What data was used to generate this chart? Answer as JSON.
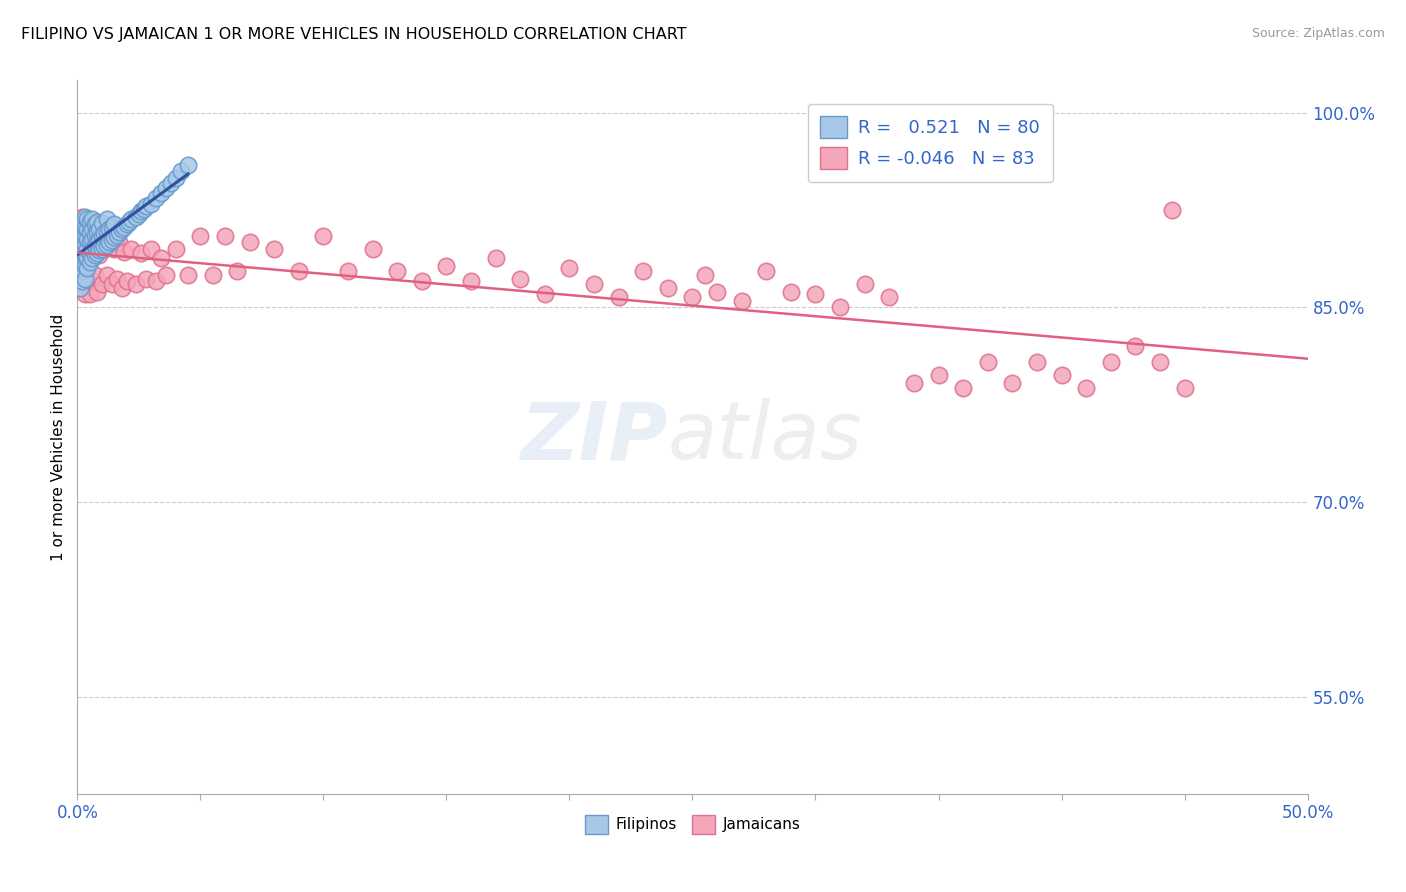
{
  "title": "FILIPINO VS JAMAICAN 1 OR MORE VEHICLES IN HOUSEHOLD CORRELATION CHART",
  "source": "Source: ZipAtlas.com",
  "ylabel": "1 or more Vehicles in Household",
  "xlim": [
    0.0,
    0.5
  ],
  "ylim": [
    0.475,
    1.025
  ],
  "xticks": [
    0.0,
    0.05,
    0.1,
    0.15,
    0.2,
    0.25,
    0.3,
    0.35,
    0.4,
    0.45,
    0.5
  ],
  "xticklabels": [
    "0.0%",
    "",
    "",
    "",
    "",
    "",
    "",
    "",
    "",
    "",
    "50.0%"
  ],
  "yticks_right": [
    0.55,
    0.7,
    0.85,
    1.0
  ],
  "ytick_right_labels": [
    "55.0%",
    "70.0%",
    "85.0%",
    "100.0%"
  ],
  "r_filipino": 0.521,
  "n_filipino": 80,
  "r_jamaican": -0.046,
  "n_jamaican": 83,
  "filipino_color": "#A8C8E8",
  "jamaican_color": "#F4A7B9",
  "filipino_edge": "#6699CC",
  "jamaican_edge": "#E07090",
  "trend_filipino_color": "#3050A0",
  "trend_jamaican_color": "#E06080",
  "filipino_x": [
    0.001,
    0.001,
    0.001,
    0.001,
    0.001,
    0.002,
    0.002,
    0.002,
    0.002,
    0.002,
    0.002,
    0.002,
    0.003,
    0.003,
    0.003,
    0.003,
    0.003,
    0.003,
    0.003,
    0.004,
    0.004,
    0.004,
    0.004,
    0.004,
    0.004,
    0.005,
    0.005,
    0.005,
    0.005,
    0.005,
    0.006,
    0.006,
    0.006,
    0.006,
    0.006,
    0.007,
    0.007,
    0.007,
    0.007,
    0.008,
    0.008,
    0.008,
    0.008,
    0.009,
    0.009,
    0.009,
    0.01,
    0.01,
    0.01,
    0.011,
    0.011,
    0.012,
    0.012,
    0.012,
    0.013,
    0.013,
    0.014,
    0.014,
    0.015,
    0.015,
    0.016,
    0.017,
    0.018,
    0.019,
    0.02,
    0.021,
    0.022,
    0.024,
    0.025,
    0.026,
    0.027,
    0.028,
    0.03,
    0.032,
    0.034,
    0.036,
    0.038,
    0.04,
    0.042,
    0.045
  ],
  "filipino_y": [
    0.865,
    0.88,
    0.89,
    0.895,
    0.9,
    0.87,
    0.878,
    0.885,
    0.892,
    0.9,
    0.908,
    0.915,
    0.872,
    0.882,
    0.89,
    0.898,
    0.905,
    0.912,
    0.92,
    0.88,
    0.888,
    0.895,
    0.903,
    0.91,
    0.918,
    0.885,
    0.892,
    0.9,
    0.908,
    0.916,
    0.888,
    0.895,
    0.902,
    0.91,
    0.918,
    0.89,
    0.898,
    0.906,
    0.914,
    0.892,
    0.9,
    0.908,
    0.916,
    0.894,
    0.902,
    0.91,
    0.895,
    0.905,
    0.915,
    0.897,
    0.907,
    0.898,
    0.908,
    0.918,
    0.9,
    0.91,
    0.902,
    0.912,
    0.904,
    0.914,
    0.906,
    0.908,
    0.91,
    0.912,
    0.914,
    0.916,
    0.918,
    0.92,
    0.922,
    0.924,
    0.926,
    0.928,
    0.93,
    0.934,
    0.938,
    0.942,
    0.946,
    0.95,
    0.955,
    0.96
  ],
  "jamaican_x": [
    0.001,
    0.002,
    0.002,
    0.003,
    0.003,
    0.004,
    0.004,
    0.005,
    0.005,
    0.006,
    0.006,
    0.007,
    0.007,
    0.008,
    0.008,
    0.009,
    0.01,
    0.01,
    0.011,
    0.012,
    0.013,
    0.014,
    0.015,
    0.016,
    0.017,
    0.018,
    0.019,
    0.02,
    0.022,
    0.024,
    0.026,
    0.028,
    0.03,
    0.032,
    0.034,
    0.036,
    0.04,
    0.045,
    0.05,
    0.055,
    0.06,
    0.065,
    0.07,
    0.08,
    0.09,
    0.1,
    0.11,
    0.12,
    0.13,
    0.14,
    0.15,
    0.16,
    0.17,
    0.18,
    0.19,
    0.2,
    0.21,
    0.22,
    0.23,
    0.24,
    0.25,
    0.255,
    0.26,
    0.27,
    0.28,
    0.29,
    0.3,
    0.31,
    0.32,
    0.33,
    0.34,
    0.35,
    0.36,
    0.37,
    0.38,
    0.39,
    0.4,
    0.41,
    0.42,
    0.43,
    0.44,
    0.445,
    0.45
  ],
  "jamaican_y": [
    0.87,
    0.92,
    0.87,
    0.9,
    0.86,
    0.91,
    0.87,
    0.9,
    0.86,
    0.91,
    0.87,
    0.915,
    0.875,
    0.9,
    0.862,
    0.89,
    0.905,
    0.868,
    0.895,
    0.875,
    0.905,
    0.868,
    0.895,
    0.872,
    0.9,
    0.865,
    0.893,
    0.87,
    0.895,
    0.868,
    0.892,
    0.872,
    0.895,
    0.87,
    0.888,
    0.875,
    0.895,
    0.875,
    0.905,
    0.875,
    0.905,
    0.878,
    0.9,
    0.895,
    0.878,
    0.905,
    0.878,
    0.895,
    0.878,
    0.87,
    0.882,
    0.87,
    0.888,
    0.872,
    0.86,
    0.88,
    0.868,
    0.858,
    0.878,
    0.865,
    0.858,
    0.875,
    0.862,
    0.855,
    0.878,
    0.862,
    0.86,
    0.85,
    0.868,
    0.858,
    0.792,
    0.798,
    0.788,
    0.808,
    0.792,
    0.808,
    0.798,
    0.788,
    0.808,
    0.82,
    0.808,
    0.925,
    0.788
  ]
}
